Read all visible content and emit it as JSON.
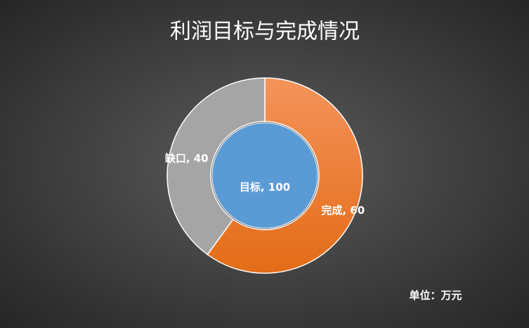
{
  "chart_data": {
    "type": "doughnut",
    "title": "利润目标与完成情况",
    "note": "单位：万元",
    "values": [
      60,
      40
    ],
    "value_labels": [
      "完成, 60",
      "缺口, 40"
    ],
    "colors": [
      "#ed7d31",
      "#a5a5a5"
    ],
    "center": {
      "value": 100,
      "value_label": "目标, 100",
      "color": "#5b9bd5"
    }
  }
}
